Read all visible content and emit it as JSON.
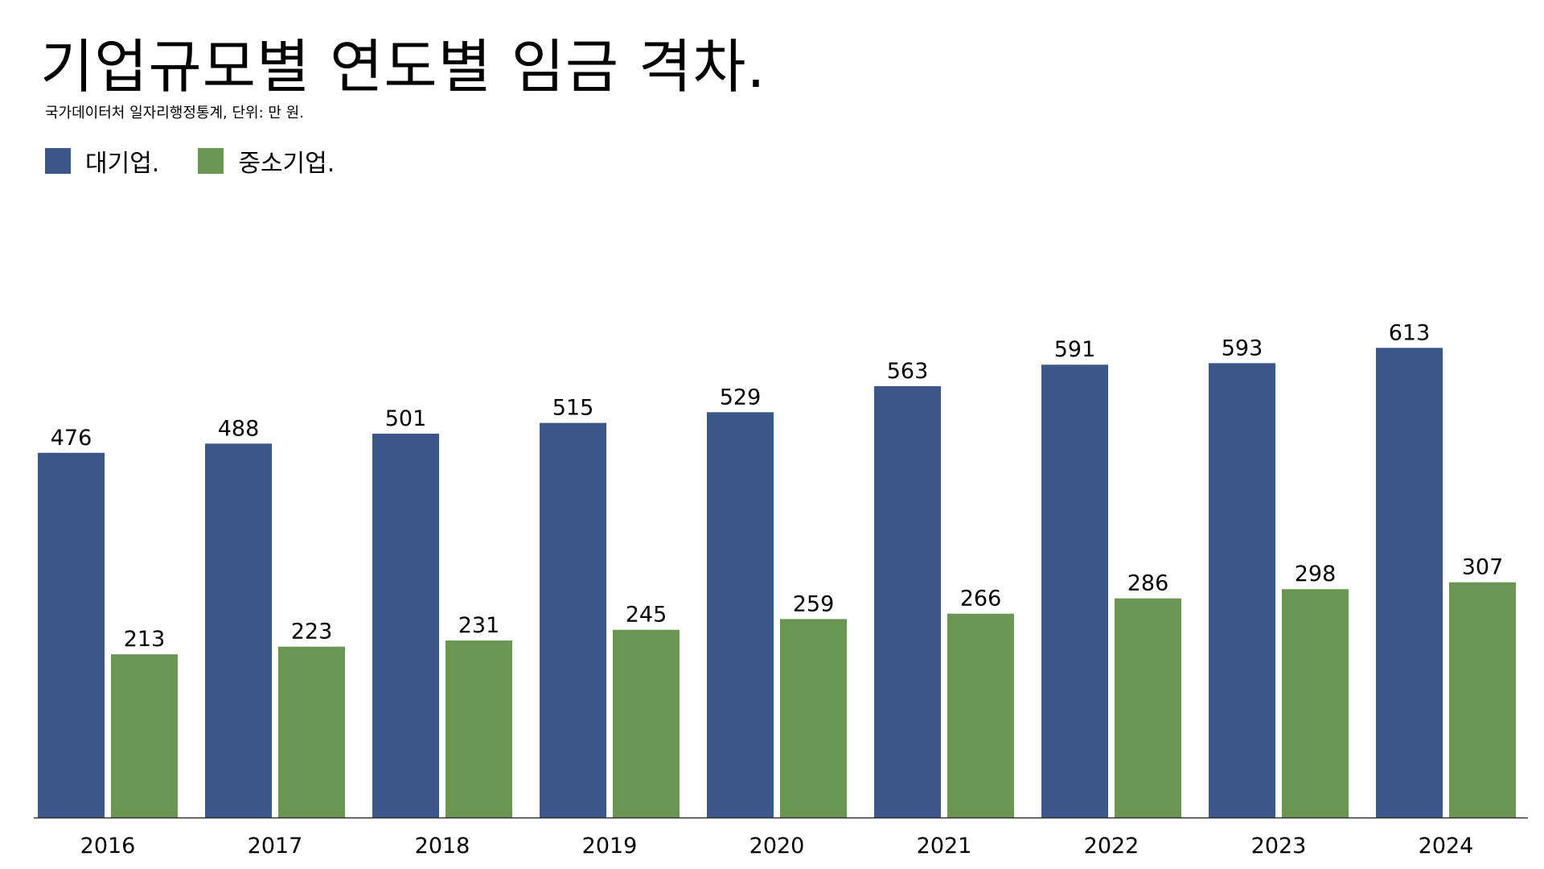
{
  "title": "기업규모별 연도별 임금 격차.",
  "subtitle": "국가데이터처 일자리행정통계, 단위: 만 원.",
  "colors": {
    "large": "#3a5787",
    "small": "#6b9552",
    "axis": "#333333"
  },
  "chart_data": {
    "type": "bar",
    "title": "기업규모별 연도별 임금 격차.",
    "subtitle": "국가데이터처 일자리행정통계, 단위: 만 원.",
    "xlabel": "",
    "ylabel": "",
    "ylim": [
      0,
      700
    ],
    "grid": false,
    "legend_position": "top-left",
    "categories": [
      "2016",
      "2017",
      "2018",
      "2019",
      "2020",
      "2021",
      "2022",
      "2023",
      "2024"
    ],
    "series": [
      {
        "name": "대기업.",
        "color": "#3a5787",
        "values": [
          476,
          488,
          501,
          515,
          529,
          563,
          591,
          593,
          613
        ]
      },
      {
        "name": "중소기업.",
        "color": "#6b9552",
        "values": [
          213,
          223,
          231,
          245,
          259,
          266,
          286,
          298,
          307
        ]
      }
    ]
  }
}
